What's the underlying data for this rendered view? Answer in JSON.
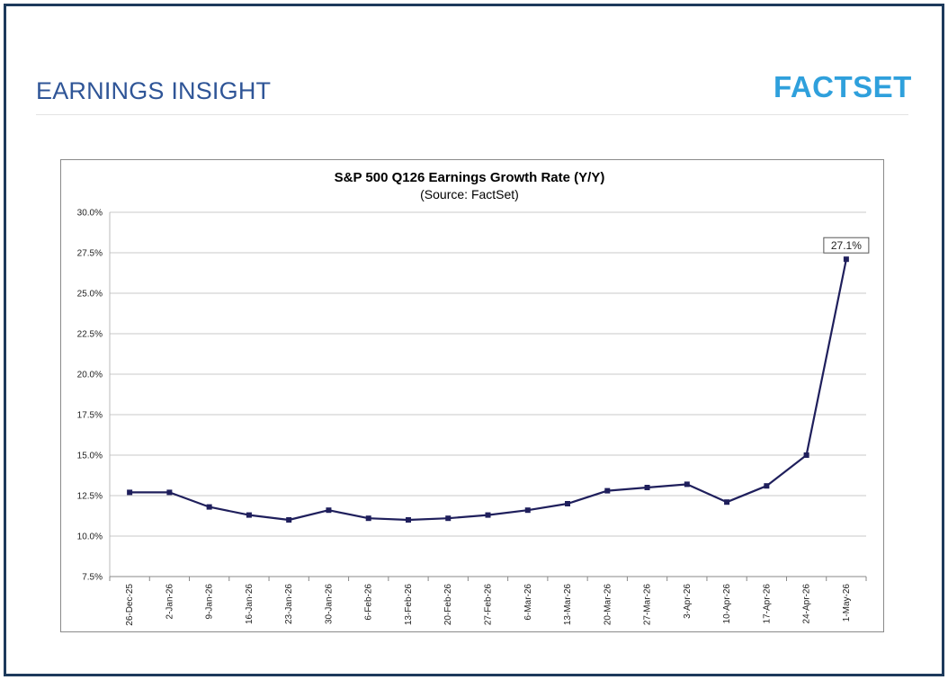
{
  "header": {
    "title": "EARNINGS INSIGHT",
    "logo_text": "FACTSET"
  },
  "colors": {
    "frame": "#1d3a5c",
    "title": "#2f5597",
    "logo": "#2fa0dc",
    "series": "#1f1f5c",
    "grid": "#c8c8c8"
  },
  "chart_data": {
    "type": "line",
    "title": "S&P 500 Q126 Earnings Growth Rate (Y/Y)",
    "subtitle": "(Source: FactSet)",
    "x": [
      "26-Dec-25",
      "2-Jan-26",
      "9-Jan-26",
      "16-Jan-26",
      "23-Jan-26",
      "30-Jan-26",
      "6-Feb-26",
      "13-Feb-26",
      "20-Feb-26",
      "27-Feb-26",
      "6-Mar-26",
      "13-Mar-26",
      "20-Mar-26",
      "27-Mar-26",
      "3-Apr-26",
      "10-Apr-26",
      "17-Apr-26",
      "24-Apr-26",
      "1-May-26"
    ],
    "values": [
      12.7,
      12.7,
      11.8,
      11.3,
      11.0,
      11.6,
      11.1,
      11.0,
      11.1,
      11.3,
      11.6,
      12.0,
      12.8,
      13.0,
      13.2,
      12.1,
      13.1,
      15.0,
      27.1
    ],
    "ylim": [
      7.5,
      30.0
    ],
    "yticks": [
      "7.5%",
      "10.0%",
      "12.5%",
      "15.0%",
      "17.5%",
      "20.0%",
      "22.5%",
      "25.0%",
      "27.5%",
      "30.0%"
    ],
    "ytick_values": [
      7.5,
      10.0,
      12.5,
      15.0,
      17.5,
      20.0,
      22.5,
      25.0,
      27.5,
      30.0
    ],
    "annotation": "27.1%",
    "grid": true,
    "legend": "none"
  }
}
